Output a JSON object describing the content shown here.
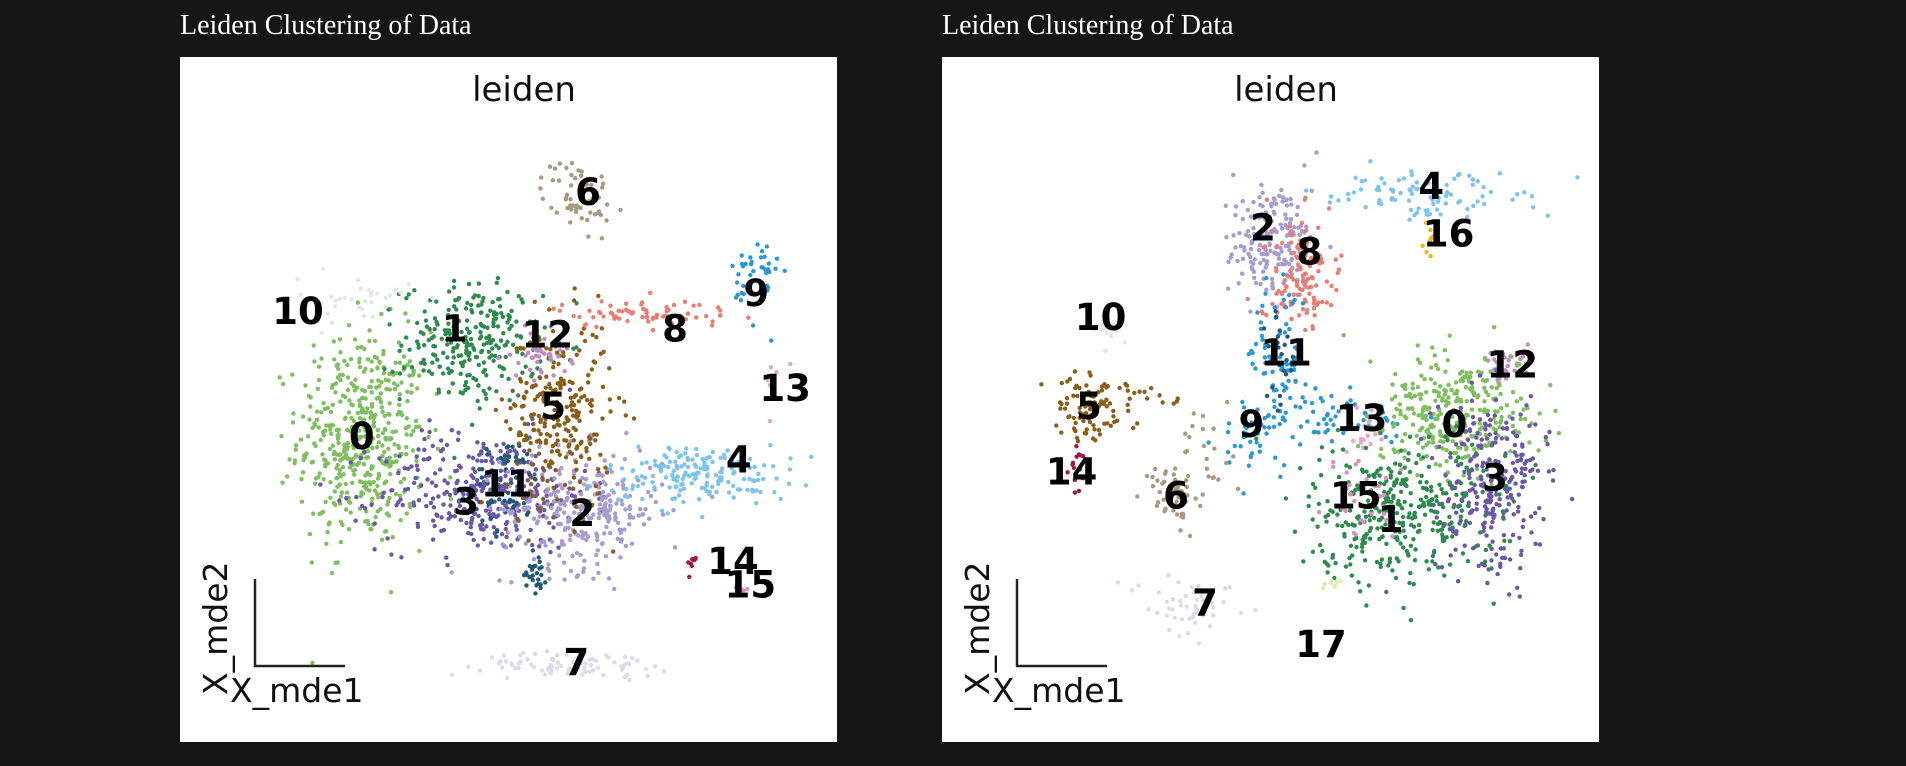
{
  "palette": {
    "0": "#7fbf5f",
    "1": "#2e8b4e",
    "2": "#a79bd0",
    "3": "#6a57a8",
    "4": "#7cc4ee",
    "5": "#8b5e1a",
    "6": "#a79a80",
    "7": "#dcdaeb",
    "8": "#ec7b72",
    "9": "#2a98d4",
    "10": "#e6e6e6",
    "11": "#1f5a78",
    "12": "#c08ac2",
    "13": "#e4a7cd",
    "14": "#9b1b4f",
    "15": "#d98fbf",
    "16": "#f0b51a",
    "17": "#e5ebb0"
  },
  "chart_data": [
    {
      "type": "scatter",
      "caption": "Leiden Clustering of Data",
      "title": "leiden",
      "xlabel": "X_mde1",
      "ylabel": "X_mde2",
      "xlim": [
        0,
        100
      ],
      "ylim": [
        0,
        100
      ],
      "clusters": [
        {
          "id": "0",
          "label": "0",
          "blobs": [
            {
              "cx": 21,
              "cy": 46,
              "sx": 5.5,
              "sy": 9,
              "n": 480
            }
          ],
          "lx": 21,
          "ly": 46
        },
        {
          "id": "1",
          "label": "1",
          "blobs": [
            {
              "cx": 40,
              "cy": 62,
              "sx": 6,
              "sy": 5,
              "n": 260
            }
          ],
          "lx": 37,
          "ly": 64
        },
        {
          "id": "3",
          "label": "3",
          "blobs": [
            {
              "cx": 42,
              "cy": 37,
              "sx": 9,
              "sy": 5,
              "n": 340
            }
          ],
          "lx": 39,
          "ly": 35
        },
        {
          "id": "11",
          "label": "11",
          "blobs": [
            {
              "cx": 46,
              "cy": 38,
              "sx": 3,
              "sy": 4,
              "n": 60
            },
            {
              "cx": 51,
              "cy": 24,
              "sx": 1,
              "sy": 2,
              "n": 25
            }
          ],
          "lx": 46,
          "ly": 38
        },
        {
          "id": "2",
          "label": "2",
          "blobs": [
            {
              "cx": 59,
              "cy": 34,
              "sx": 7,
              "sy": 5,
              "n": 270
            }
          ],
          "lx": 59,
          "ly": 33
        },
        {
          "id": "5",
          "label": "5",
          "blobs": [
            {
              "cx": 55,
              "cy": 50,
              "sx": 4.5,
              "sy": 8,
              "n": 250
            }
          ],
          "lx": 54,
          "ly": 51
        },
        {
          "id": "12",
          "label": "12",
          "blobs": [
            {
              "cx": 52,
              "cy": 60,
              "sx": 2.5,
              "sy": 2,
              "n": 40
            }
          ],
          "lx": 53,
          "ly": 63
        },
        {
          "id": "6",
          "label": "6",
          "blobs": [
            {
              "cx": 58,
              "cy": 87,
              "sx": 3,
              "sy": 3,
              "n": 60
            }
          ],
          "lx": 60,
          "ly": 87
        },
        {
          "id": "8",
          "label": "8",
          "blobs": [
            {
              "cx": 70,
              "cy": 67,
              "sx": 8,
              "sy": 1.2,
              "n": 70
            }
          ],
          "lx": 75,
          "ly": 64
        },
        {
          "id": "9",
          "label": "9",
          "blobs": [
            {
              "cx": 89,
              "cy": 73,
              "sx": 2,
              "sy": 4,
              "n": 40
            }
          ],
          "lx": 89,
          "ly": 70
        },
        {
          "id": "10",
          "label": "10",
          "blobs": [
            {
              "cx": 20,
              "cy": 69,
              "sx": 5,
              "sy": 2,
              "n": 35
            }
          ],
          "lx": 10,
          "ly": 67
        },
        {
          "id": "13",
          "label": "13",
          "blobs": [
            {
              "cx": 92,
              "cy": 55,
              "sx": 1,
              "sy": 3,
              "n": 8
            }
          ],
          "lx": 94,
          "ly": 54
        },
        {
          "id": "4",
          "label": "4",
          "blobs": [
            {
              "cx": 79,
              "cy": 40,
              "sx": 8,
              "sy": 2.5,
              "n": 170
            }
          ],
          "lx": 86,
          "ly": 42
        },
        {
          "id": "14",
          "label": "14",
          "blobs": [
            {
              "cx": 78,
              "cy": 25,
              "sx": 1,
              "sy": 1,
              "n": 8
            }
          ],
          "lx": 85,
          "ly": 25
        },
        {
          "id": "15",
          "label": "15",
          "blobs": [
            {
              "cx": 86,
              "cy": 21,
              "sx": 1,
              "sy": 1,
              "n": 6
            }
          ],
          "lx": 88,
          "ly": 21
        },
        {
          "id": "7",
          "label": "7",
          "blobs": [
            {
              "cx": 58,
              "cy": 8,
              "sx": 8,
              "sy": 1,
              "n": 80
            }
          ],
          "lx": 58,
          "ly": 8
        }
      ]
    },
    {
      "type": "scatter",
      "caption": "Leiden Clustering of Data",
      "title": "leiden",
      "xlabel": "X_mde1",
      "ylabel": "X_mde2",
      "xlim": [
        0,
        100
      ],
      "ylim": [
        0,
        100
      ],
      "clusters": [
        {
          "id": "2",
          "label": "2",
          "blobs": [
            {
              "cx": 46,
              "cy": 79,
              "sx": 4,
              "sy": 5,
              "n": 180
            }
          ],
          "lx": 45,
          "ly": 81
        },
        {
          "id": "8",
          "label": "8",
          "blobs": [
            {
              "cx": 52,
              "cy": 73,
              "sx": 3,
              "sy": 5,
              "n": 120
            }
          ],
          "lx": 53,
          "ly": 77
        },
        {
          "id": "4",
          "label": "4",
          "blobs": [
            {
              "cx": 73,
              "cy": 87,
              "sx": 8,
              "sy": 2,
              "n": 90
            }
          ],
          "lx": 74,
          "ly": 88
        },
        {
          "id": "16",
          "label": "16",
          "blobs": [
            {
              "cx": 74,
              "cy": 80,
              "sx": 1,
              "sy": 1.5,
              "n": 10
            }
          ],
          "lx": 77,
          "ly": 80
        },
        {
          "id": "9",
          "label": "9",
          "blobs": [
            {
              "cx": 48,
              "cy": 58,
              "sx": 3,
              "sy": 8,
              "n": 90
            },
            {
              "cx": 42,
              "cy": 45,
              "sx": 3,
              "sy": 3,
              "n": 30
            },
            {
              "cx": 59,
              "cy": 49,
              "sx": 6,
              "sy": 2,
              "n": 50
            }
          ],
          "lx": 43,
          "ly": 48
        },
        {
          "id": "11",
          "label": "11",
          "blobs": [
            {
              "cx": 48,
              "cy": 60,
              "sx": 1.5,
              "sy": 4,
              "n": 25
            }
          ],
          "lx": 49,
          "ly": 60
        },
        {
          "id": "10",
          "label": "10",
          "blobs": [
            {
              "cx": 17,
              "cy": 64,
              "sx": 2,
              "sy": 2,
              "n": 12
            }
          ],
          "lx": 17,
          "ly": 66
        },
        {
          "id": "5",
          "label": "5",
          "blobs": [
            {
              "cx": 15,
              "cy": 51,
              "sx": 3,
              "sy": 3,
              "n": 90
            },
            {
              "cx": 25,
              "cy": 52,
              "sx": 3,
              "sy": 2,
              "n": 12
            }
          ],
          "lx": 15,
          "ly": 51
        },
        {
          "id": "14",
          "label": "14",
          "blobs": [
            {
              "cx": 13,
              "cy": 40,
              "sx": 1,
              "sy": 4,
              "n": 15
            }
          ],
          "lx": 12,
          "ly": 40
        },
        {
          "id": "6",
          "label": "6",
          "blobs": [
            {
              "cx": 30,
              "cy": 37,
              "sx": 2.5,
              "sy": 3,
              "n": 60
            },
            {
              "cx": 35,
              "cy": 43,
              "sx": 2,
              "sy": 3,
              "n": 20
            }
          ],
          "lx": 30,
          "ly": 36
        },
        {
          "id": "7",
          "label": "7",
          "blobs": [
            {
              "cx": 32,
              "cy": 18,
              "sx": 4,
              "sy": 2,
              "n": 50
            }
          ],
          "lx": 35,
          "ly": 18
        },
        {
          "id": "13",
          "label": "13",
          "blobs": [
            {
              "cx": 63,
              "cy": 47,
              "sx": 2,
              "sy": 2,
              "n": 20
            }
          ],
          "lx": 62,
          "ly": 49
        },
        {
          "id": "12",
          "label": "12",
          "blobs": [
            {
              "cx": 87,
              "cy": 58,
              "sx": 2,
              "sy": 1.5,
              "n": 35
            }
          ],
          "lx": 88,
          "ly": 58
        },
        {
          "id": "0",
          "label": "0",
          "blobs": [
            {
              "cx": 78,
              "cy": 50,
              "sx": 7,
              "sy": 5,
              "n": 300
            }
          ],
          "lx": 78,
          "ly": 48
        },
        {
          "id": "3",
          "label": "3",
          "blobs": [
            {
              "cx": 84,
              "cy": 38,
              "sx": 5,
              "sy": 7,
              "n": 280
            }
          ],
          "lx": 85,
          "ly": 39
        },
        {
          "id": "1",
          "label": "1",
          "blobs": [
            {
              "cx": 68,
              "cy": 34,
              "sx": 8,
              "sy": 6,
              "n": 360
            }
          ],
          "lx": 67,
          "ly": 32
        },
        {
          "id": "15",
          "label": "15",
          "blobs": [
            {
              "cx": 63,
              "cy": 35,
              "sx": 3,
              "sy": 4,
              "n": 30
            }
          ],
          "lx": 61,
          "ly": 36
        },
        {
          "id": "17",
          "label": "17",
          "blobs": [
            {
              "cx": 57,
              "cy": 21,
              "sx": 0.6,
              "sy": 1.2,
              "n": 8
            }
          ],
          "lx": 55,
          "ly": 11
        }
      ]
    }
  ]
}
